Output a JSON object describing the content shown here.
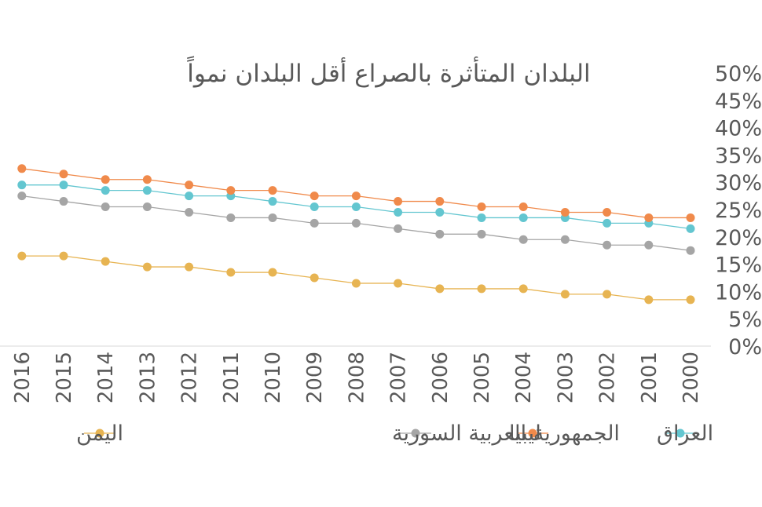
{
  "chart_data": {
    "type": "line",
    "title": "البلدان المتأثرة بالصراع  أقل البلدان نمواً",
    "xlabel": "",
    "ylabel": "",
    "x_direction": "right-to-left",
    "x": [
      "2000",
      "2001",
      "2002",
      "2003",
      "2004",
      "2005",
      "2006",
      "2007",
      "2008",
      "2009",
      "2010",
      "2011",
      "2012",
      "2013",
      "2014",
      "2015",
      "2016"
    ],
    "yticks": [
      "0%",
      "5%",
      "10%",
      "15%",
      "20%",
      "25%",
      "30%",
      "35%",
      "40%",
      "45%",
      "50%"
    ],
    "ylim": [
      0,
      50
    ],
    "grid": false,
    "legend_position": "bottom",
    "series": [
      {
        "name": "العراق",
        "color": "#63c6d0",
        "values": [
          21.5,
          22.5,
          22.5,
          23.5,
          23.5,
          23.5,
          24.5,
          24.5,
          25.5,
          25.5,
          26.5,
          27.5,
          27.5,
          28.5,
          28.5,
          29.5,
          29.5
        ]
      },
      {
        "name": "ليبيا",
        "color": "#f08a4b",
        "values": [
          23.5,
          23.5,
          24.5,
          24.5,
          25.5,
          25.5,
          26.5,
          26.5,
          27.5,
          27.5,
          28.5,
          28.5,
          29.5,
          30.5,
          30.5,
          31.5,
          32.5
        ]
      },
      {
        "name": "الجمهورية العربية السورية",
        "color": "#a5a5a5",
        "values": [
          17.5,
          18.5,
          18.5,
          19.5,
          19.5,
          20.5,
          20.5,
          21.5,
          22.5,
          22.5,
          23.5,
          23.5,
          24.5,
          25.5,
          25.5,
          26.5,
          27.5
        ]
      },
      {
        "name": "اليمن",
        "color": "#e7b452",
        "values": [
          8.5,
          8.5,
          9.5,
          9.5,
          10.5,
          10.5,
          10.5,
          11.5,
          11.5,
          12.5,
          13.5,
          13.5,
          14.5,
          14.5,
          15.5,
          16.5,
          16.5
        ]
      }
    ]
  }
}
